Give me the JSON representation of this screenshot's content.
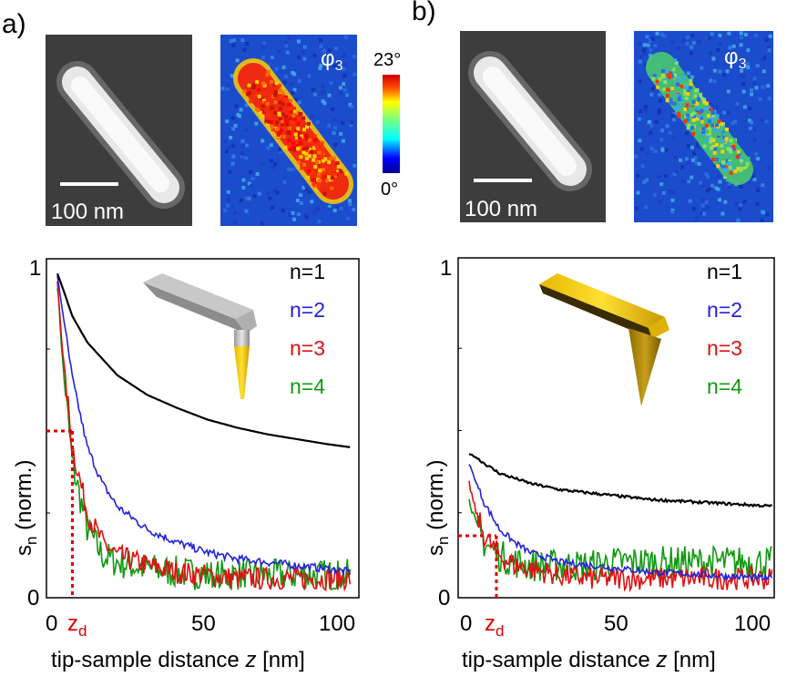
{
  "panels": [
    {
      "label": "a)",
      "topo_scalebar": "100 nm",
      "phase_label": "φ",
      "phase_sub": "3",
      "colorbar": {
        "max": "23°",
        "min": "0°"
      },
      "plot": {
        "ylabel_main": "s",
        "ylabel_sub": "n",
        "ylabel_rest": " (norm.)",
        "xlabel_main": "tip-sample distance ",
        "xlabel_var": "z",
        "xlabel_unit": " [nm]",
        "x_ticks": [
          "0",
          "50",
          "100"
        ],
        "y_ticks": [
          "0",
          "1"
        ],
        "zd_main": "z",
        "zd_sub": "d"
      }
    },
    {
      "label": "b)",
      "topo_scalebar": "100 nm",
      "phase_label": "φ",
      "phase_sub": "3",
      "plot": {
        "ylabel_main": "s",
        "ylabel_sub": "n",
        "ylabel_rest": " (norm.)",
        "xlabel_main": "tip-sample distance ",
        "xlabel_var": "z",
        "xlabel_unit": " [nm]",
        "x_ticks": [
          "0",
          "50",
          "100"
        ],
        "y_ticks": [
          "0",
          "1"
        ],
        "zd_main": "z",
        "zd_sub": "d"
      }
    }
  ],
  "legend": [
    {
      "label": "n=1",
      "color": "#000000"
    },
    {
      "label": "n=2",
      "color": "#2222dd"
    },
    {
      "label": "n=3",
      "color": "#dd1111"
    },
    {
      "label": "n=4",
      "color": "#119911"
    }
  ],
  "chart_data": [
    {
      "type": "line",
      "xlim": [
        0,
        100
      ],
      "ylim": [
        0,
        1
      ],
      "zd": 5,
      "zd_level": 0.5,
      "series": [
        {
          "name": "n=1",
          "color": "#000000",
          "x": [
            0,
            2,
            5,
            10,
            20,
            30,
            40,
            50,
            60,
            70,
            80,
            90,
            98
          ],
          "y": [
            0.98,
            0.93,
            0.85,
            0.77,
            0.67,
            0.61,
            0.57,
            0.535,
            0.51,
            0.49,
            0.475,
            0.46,
            0.45
          ]
        },
        {
          "name": "n=2",
          "color": "#2222dd",
          "x": [
            0,
            2,
            5,
            10,
            15,
            20,
            30,
            40,
            50,
            60,
            70,
            80,
            90,
            98
          ],
          "y": [
            0.97,
            0.85,
            0.66,
            0.45,
            0.34,
            0.27,
            0.2,
            0.16,
            0.13,
            0.11,
            0.1,
            0.09,
            0.08,
            0.07
          ]
        },
        {
          "name": "n=3",
          "color": "#dd1111",
          "x": [
            0,
            2,
            5,
            10,
            15,
            20,
            30,
            40,
            50,
            60,
            70,
            80,
            90,
            98
          ],
          "y": [
            0.95,
            0.72,
            0.45,
            0.25,
            0.16,
            0.12,
            0.09,
            0.07,
            0.06,
            0.05,
            0.05,
            0.05,
            0.05,
            0.05
          ]
        },
        {
          "name": "n=4",
          "color": "#119911",
          "x": [
            0,
            2,
            5,
            10,
            15,
            20,
            30,
            40,
            50,
            60,
            70,
            80,
            90,
            98
          ],
          "y": [
            0.95,
            0.68,
            0.4,
            0.2,
            0.12,
            0.1,
            0.08,
            0.07,
            0.06,
            0.06,
            0.06,
            0.06,
            0.06,
            0.06
          ]
        }
      ]
    },
    {
      "type": "line",
      "xlim": [
        0,
        100
      ],
      "ylim": [
        0,
        1
      ],
      "zd": 9,
      "zd_level": 0.18,
      "series": [
        {
          "name": "n=1",
          "color": "#000000",
          "x": [
            0,
            2,
            5,
            10,
            20,
            30,
            40,
            50,
            60,
            70,
            80,
            90,
            100
          ],
          "y": [
            0.43,
            0.42,
            0.4,
            0.37,
            0.34,
            0.32,
            0.31,
            0.3,
            0.29,
            0.285,
            0.28,
            0.275,
            0.27
          ]
        },
        {
          "name": "n=2",
          "color": "#2222dd",
          "x": [
            0,
            2,
            5,
            10,
            15,
            20,
            30,
            40,
            50,
            60,
            70,
            80,
            90,
            100
          ],
          "y": [
            0.4,
            0.35,
            0.28,
            0.2,
            0.16,
            0.13,
            0.1,
            0.09,
            0.08,
            0.07,
            0.065,
            0.06,
            0.055,
            0.05
          ]
        },
        {
          "name": "n=3",
          "color": "#dd1111",
          "x": [
            0,
            2,
            5,
            10,
            15,
            20,
            30,
            40,
            50,
            60,
            70,
            80,
            90,
            100
          ],
          "y": [
            0.34,
            0.26,
            0.18,
            0.12,
            0.09,
            0.08,
            0.06,
            0.05,
            0.05,
            0.05,
            0.05,
            0.05,
            0.05,
            0.05
          ]
        },
        {
          "name": "n=4",
          "color": "#119911",
          "x": [
            0,
            2,
            5,
            10,
            15,
            20,
            30,
            40,
            50,
            60,
            70,
            80,
            90,
            100
          ],
          "y": [
            0.3,
            0.22,
            0.16,
            0.12,
            0.1,
            0.09,
            0.09,
            0.09,
            0.1,
            0.1,
            0.1,
            0.1,
            0.1,
            0.1
          ]
        }
      ]
    }
  ]
}
